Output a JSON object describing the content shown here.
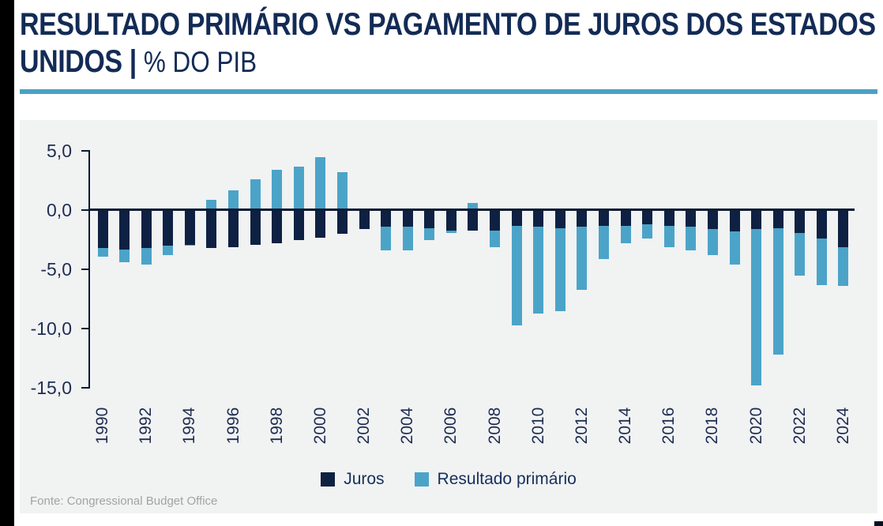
{
  "page": {
    "title_line1": "RESULTADO PRIMÁRIO VS PAGAMENTO DE JUROS DOS ESTADOS",
    "title_line2_strong": "UNIDOS |",
    "title_line2_sub": "% DO PIB",
    "source": "Fonte: Congressional Budget Office"
  },
  "colors": {
    "title": "#132b55",
    "accent_rule": "#4aa2c4",
    "panel_background": "#f1f2f2",
    "axis": "#0a1a33",
    "tick_text": "#1e2d52",
    "juros_bar": "#0e2142",
    "primario_bar": "#4ba4c8",
    "source_text": "#a3a3a3",
    "frame": "#000000"
  },
  "legend": {
    "items": [
      {
        "label": "Juros",
        "color": "#0e2142"
      },
      {
        "label": "Resultado primário",
        "color": "#4ba4c8"
      }
    ]
  },
  "chart_data": {
    "type": "bar",
    "stacked": true,
    "title": "Resultado primário vs pagamento de juros dos Estados Unidos",
    "ylabel": "% do PIB",
    "categories": [
      1990,
      1991,
      1992,
      1993,
      1994,
      1995,
      1996,
      1997,
      1998,
      1999,
      2000,
      2001,
      2002,
      2003,
      2004,
      2005,
      2006,
      2007,
      2008,
      2009,
      2010,
      2011,
      2012,
      2013,
      2014,
      2015,
      2016,
      2017,
      2018,
      2019,
      2020,
      2021,
      2022,
      2023,
      2024
    ],
    "series": [
      {
        "name": "Juros",
        "color": "#0e2142",
        "values": [
          -3.2,
          -3.3,
          -3.2,
          -3.0,
          -2.9,
          -3.2,
          -3.1,
          -2.9,
          -2.8,
          -2.5,
          -2.3,
          -2.0,
          -1.6,
          -1.4,
          -1.4,
          -1.5,
          -1.7,
          -1.7,
          -1.7,
          -1.3,
          -1.4,
          -1.5,
          -1.4,
          -1.3,
          -1.3,
          -1.2,
          -1.3,
          -1.4,
          -1.6,
          -1.8,
          -1.6,
          -1.5,
          -1.9,
          -2.4,
          -3.1
        ]
      },
      {
        "name": "Resultado primário",
        "color": "#4ba4c8",
        "values": [
          -0.7,
          -1.1,
          -1.4,
          -0.8,
          -0.1,
          0.9,
          1.7,
          2.6,
          3.4,
          3.7,
          4.5,
          3.2,
          0.1,
          -2.0,
          -2.0,
          -1.0,
          -0.2,
          0.6,
          -1.4,
          -8.4,
          -7.3,
          -7.0,
          -5.3,
          -2.8,
          -1.5,
          -1.2,
          -1.8,
          -2.0,
          -2.2,
          -2.8,
          -13.2,
          -10.7,
          -3.6,
          -3.9,
          -3.3
        ]
      }
    ],
    "y_ticks": [
      {
        "value": 5,
        "label": "5,0"
      },
      {
        "value": 0,
        "label": "0,0"
      },
      {
        "value": -5,
        "label": "-5,0"
      },
      {
        "value": -10,
        "label": "-10,0"
      },
      {
        "value": -15,
        "label": "-15,0"
      }
    ],
    "ylim": [
      -15.5,
      5.5
    ],
    "x_tick_years": [
      1990,
      1992,
      1994,
      1996,
      1998,
      2000,
      2002,
      2004,
      2006,
      2008,
      2010,
      2012,
      2014,
      2016,
      2018,
      2020,
      2022,
      2024
    ],
    "grid": false,
    "legend_position": "bottom"
  }
}
